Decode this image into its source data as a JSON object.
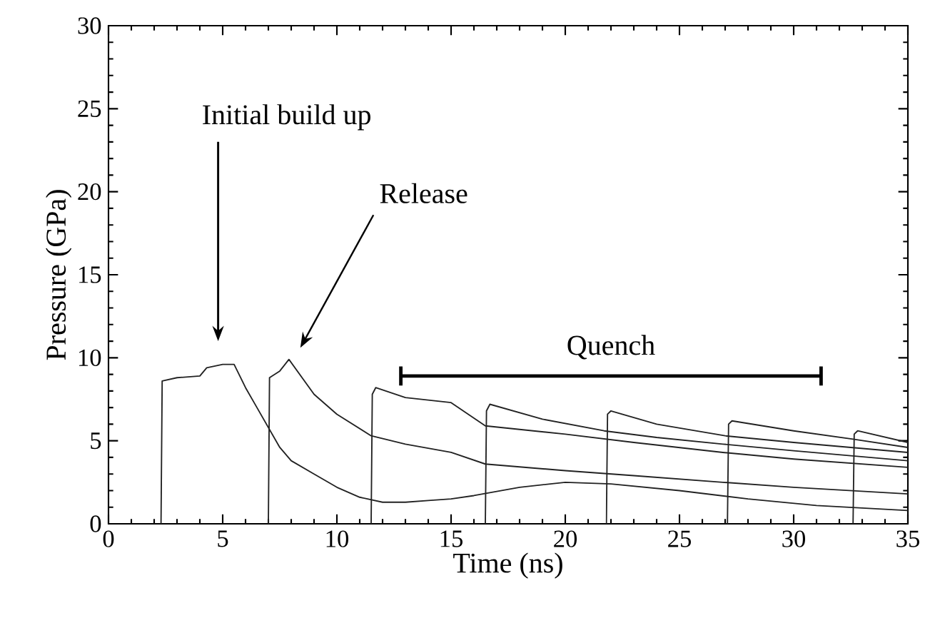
{
  "chart_data": {
    "type": "line",
    "xlabel": "Time (ns)",
    "ylabel": "Pressure (GPa)",
    "xlim": [
      0,
      35
    ],
    "ylim": [
      0,
      30
    ],
    "xticks": [
      0,
      5,
      10,
      15,
      20,
      25,
      30,
      35
    ],
    "yticks": [
      0,
      5,
      10,
      15,
      20,
      25,
      30
    ],
    "grid": false,
    "marker": "none",
    "line_style": "solid",
    "annotations": [
      "Initial build up",
      "Release",
      "Quench"
    ],
    "series": [
      {
        "color": "#222222",
        "x": [
          2.3,
          2.35,
          3,
          4,
          4.3,
          5,
          5.5,
          6,
          6.5,
          7,
          7.5,
          8,
          9,
          10,
          11,
          12,
          13,
          14,
          15,
          16,
          18,
          20,
          22,
          25,
          28,
          31,
          35
        ],
        "values": [
          0,
          8.6,
          8.8,
          8.9,
          9.4,
          9.6,
          9.6,
          8.2,
          7.0,
          5.8,
          4.6,
          3.8,
          3.0,
          2.2,
          1.6,
          1.3,
          1.3,
          1.4,
          1.5,
          1.7,
          2.2,
          2.5,
          2.4,
          2.0,
          1.5,
          1.1,
          0.8
        ]
      },
      {
        "color": "#222222",
        "x": [
          7.0,
          7.05,
          7.5,
          7.9,
          9,
          10,
          11.5,
          13,
          15,
          16.5,
          20,
          23,
          26.9,
          30,
          35
        ],
        "values": [
          0,
          8.8,
          9.2,
          9.9,
          7.8,
          6.6,
          5.3,
          4.8,
          4.3,
          3.6,
          3.2,
          2.9,
          2.5,
          2.2,
          1.8
        ]
      },
      {
        "color": "#222222",
        "x": [
          11.5,
          11.55,
          11.7,
          13,
          15,
          16.5,
          20,
          23,
          26.9,
          30,
          35
        ],
        "values": [
          0,
          7.8,
          8.2,
          7.6,
          7.3,
          5.9,
          5.4,
          4.9,
          4.3,
          3.9,
          3.4
        ]
      },
      {
        "color": "#222222",
        "x": [
          16.5,
          16.55,
          16.7,
          19,
          21.7,
          24,
          26.9,
          30,
          35
        ],
        "values": [
          0,
          6.8,
          7.2,
          6.3,
          5.6,
          5.2,
          4.8,
          4.4,
          3.8
        ]
      },
      {
        "color": "#222222",
        "x": [
          21.8,
          21.85,
          22,
          24,
          27,
          30,
          35
        ],
        "values": [
          0,
          6.6,
          6.8,
          6.0,
          5.3,
          4.9,
          4.3
        ]
      },
      {
        "color": "#222222",
        "x": [
          27.1,
          27.15,
          27.3,
          30,
          32.6,
          35
        ],
        "values": [
          0,
          6.0,
          6.2,
          5.6,
          5.1,
          4.6
        ]
      },
      {
        "color": "#222222",
        "x": [
          32.6,
          32.65,
          32.8,
          35
        ],
        "values": [
          0,
          5.4,
          5.6,
          4.9
        ]
      }
    ]
  }
}
